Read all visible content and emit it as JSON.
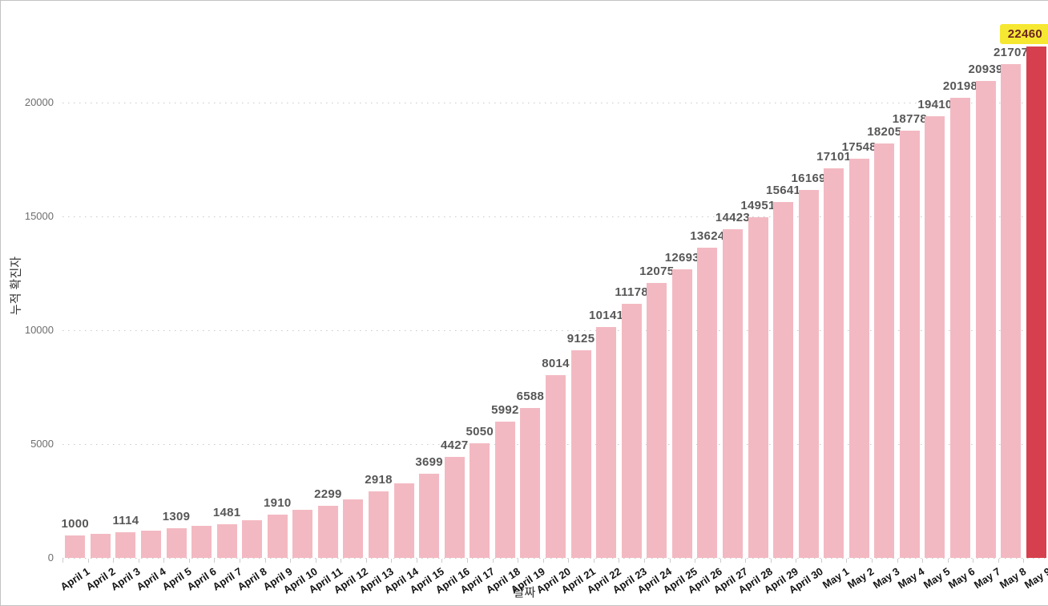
{
  "chart_data": {
    "type": "bar",
    "title": "",
    "xlabel": "날짜",
    "ylabel": "누적 확진자",
    "ylim": [
      0,
      22500
    ],
    "yticks": [
      0,
      5000,
      10000,
      15000,
      20000
    ],
    "grid": "horizontal dotted",
    "legend": "none",
    "categories": [
      "April 1",
      "April 2",
      "April 3",
      "April 4",
      "April 5",
      "April 6",
      "April 7",
      "April 8",
      "April 9",
      "April 10",
      "April 11",
      "April 12",
      "April 13",
      "April 14",
      "April 15",
      "April 16",
      "April 17",
      "April 18",
      "April 19",
      "April 20",
      "April 21",
      "April 22",
      "April 23",
      "April 24",
      "April 25",
      "April 26",
      "April 27",
      "April 28",
      "April 29",
      "April 30",
      "May 1",
      "May 2",
      "May 3",
      "May 4",
      "May 5",
      "May 6",
      "May 7",
      "May 8",
      "May 9"
    ],
    "values": [
      1000,
      1055,
      1114,
      1210,
      1309,
      1395,
      1481,
      1640,
      1910,
      2100,
      2299,
      2560,
      2918,
      3280,
      3699,
      4427,
      5050,
      5992,
      6588,
      8014,
      9125,
      10141,
      11178,
      12075,
      12693,
      13624,
      14423,
      14951,
      15641,
      16169,
      17101,
      17548,
      18205,
      18778,
      19410,
      20198,
      20939,
      21707,
      22460
    ],
    "data_labels": [
      "1000",
      "",
      "1114",
      "",
      "1309",
      "",
      "1481",
      "",
      "1910",
      "",
      "2299",
      "",
      "2918",
      "",
      "3699",
      "4427",
      "5050",
      "5992",
      "6588",
      "8014",
      "9125",
      "10141",
      "11178",
      "12075",
      "12693",
      "13624",
      "14423",
      "14951",
      "15641",
      "16169",
      "17101",
      "17548",
      "18205",
      "18778",
      "19410",
      "20198",
      "20939",
      "21707",
      "22460"
    ],
    "highlight": {
      "category": "May 9",
      "index": 38,
      "value": 22460,
      "badge_text": "22460"
    }
  },
  "colors": {
    "bar": "#f3b9c2",
    "highlight_bar": "#d6404e",
    "highlight_label_bg": "#f6e832",
    "highlight_label_text": "#6b2420",
    "value_label": "#575757",
    "y_tick_label": "#6e6e6e",
    "x_tick_label": "#141414",
    "axis_title": "#333333",
    "grid": "#cacaca",
    "axis_tick": "#cccccc",
    "border": "#c3c3c3"
  }
}
